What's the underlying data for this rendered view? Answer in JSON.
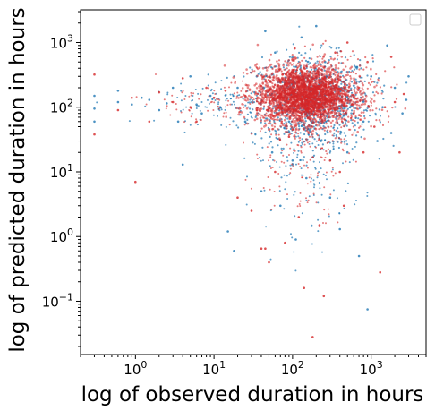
{
  "chart_data": {
    "type": "scatter",
    "xlabel": "log of observed duration in hours",
    "ylabel": "log of predicted duration in hours",
    "xscale": "log",
    "yscale": "log",
    "xlim": [
      0.2,
      5000
    ],
    "ylim": [
      0.015,
      3200
    ],
    "grid": false,
    "legend": {
      "placement": "upper right",
      "entries": []
    },
    "x_ticks": [
      {
        "value": 1,
        "base": "10",
        "exp": "0"
      },
      {
        "value": 10,
        "base": "10",
        "exp": "1"
      },
      {
        "value": 100,
        "base": "10",
        "exp": "2"
      },
      {
        "value": 1000,
        "base": "10",
        "exp": "3"
      }
    ],
    "y_ticks": [
      {
        "value": 0.1,
        "base": "10",
        "exp": "−1"
      },
      {
        "value": 1,
        "base": "10",
        "exp": "0"
      },
      {
        "value": 10,
        "base": "10",
        "exp": "1"
      },
      {
        "value": 100,
        "base": "10",
        "exp": "2"
      },
      {
        "value": 1000,
        "base": "10",
        "exp": "3"
      }
    ],
    "series": [
      {
        "color": "#1f77b4",
        "points": [
          [
            0.3,
            150
          ],
          [
            0.3,
            95
          ],
          [
            0.3,
            60
          ],
          [
            0.6,
            120
          ],
          [
            0.6,
            180
          ],
          [
            0.9,
            110
          ],
          [
            1.2,
            140
          ],
          [
            1.5,
            130
          ],
          [
            2.0,
            90
          ],
          [
            2.5,
            115
          ],
          [
            3.0,
            200
          ],
          [
            3.5,
            60
          ],
          [
            4.0,
            13
          ],
          [
            5.0,
            300
          ],
          [
            6.0,
            110
          ],
          [
            7.0,
            80
          ],
          [
            9.0,
            150
          ],
          [
            12,
            100
          ],
          [
            15,
            1.2
          ],
          [
            18,
            0.6
          ],
          [
            20,
            200
          ],
          [
            25,
            60
          ],
          [
            30,
            40
          ],
          [
            35,
            300
          ],
          [
            40,
            5
          ],
          [
            45,
            1500
          ],
          [
            55,
            20
          ],
          [
            60,
            700
          ],
          [
            70,
            3
          ],
          [
            80,
            150
          ],
          [
            90,
            60
          ],
          [
            100,
            15
          ],
          [
            110,
            0.9
          ],
          [
            130,
            1200
          ],
          [
            150,
            8
          ],
          [
            170,
            200
          ],
          [
            200,
            1800
          ],
          [
            230,
            30
          ],
          [
            260,
            500
          ],
          [
            300,
            4
          ],
          [
            350,
            90
          ],
          [
            400,
            1.3
          ],
          [
            450,
            250
          ],
          [
            500,
            20
          ],
          [
            600,
            140
          ],
          [
            700,
            0.5
          ],
          [
            800,
            60
          ],
          [
            900,
            0.075
          ],
          [
            1000,
            300
          ],
          [
            1200,
            30
          ],
          [
            1400,
            100
          ],
          [
            1600,
            900
          ],
          [
            1800,
            40
          ],
          [
            2000,
            200
          ],
          [
            2500,
            80
          ],
          [
            2800,
            130
          ],
          [
            3000,
            300
          ]
        ]
      },
      {
        "color": "#d62728",
        "points": [
          [
            0.3,
            320
          ],
          [
            0.3,
            38
          ],
          [
            0.6,
            90
          ],
          [
            0.9,
            140
          ],
          [
            1.0,
            7
          ],
          [
            1.5,
            60
          ],
          [
            2.0,
            170
          ],
          [
            3.0,
            120
          ],
          [
            4.0,
            280
          ],
          [
            5.0,
            100
          ],
          [
            6.0,
            60
          ],
          [
            8.0,
            200
          ],
          [
            10,
            140
          ],
          [
            14,
            180
          ],
          [
            20,
            4
          ],
          [
            25,
            150
          ],
          [
            30,
            2.5
          ],
          [
            35,
            90
          ],
          [
            40,
            0.65
          ],
          [
            45,
            0.65
          ],
          [
            50,
            0.4
          ],
          [
            60,
            10
          ],
          [
            70,
            250
          ],
          [
            80,
            0.8
          ],
          [
            90,
            35
          ],
          [
            100,
            120
          ],
          [
            120,
            2
          ],
          [
            140,
            0.16
          ],
          [
            160,
            40
          ],
          [
            180,
            0.028
          ],
          [
            200,
            300
          ],
          [
            220,
            1.5
          ],
          [
            250,
            0.12
          ],
          [
            300,
            15
          ],
          [
            350,
            700
          ],
          [
            400,
            10
          ],
          [
            450,
            3
          ],
          [
            500,
            1000
          ],
          [
            600,
            80
          ],
          [
            700,
            200
          ],
          [
            800,
            20
          ],
          [
            900,
            500
          ],
          [
            1100,
            50
          ],
          [
            1300,
            0.28
          ],
          [
            1500,
            100
          ],
          [
            1800,
            600
          ],
          [
            2000,
            120
          ],
          [
            2300,
            20
          ],
          [
            2600,
            160
          ]
        ]
      }
    ]
  }
}
